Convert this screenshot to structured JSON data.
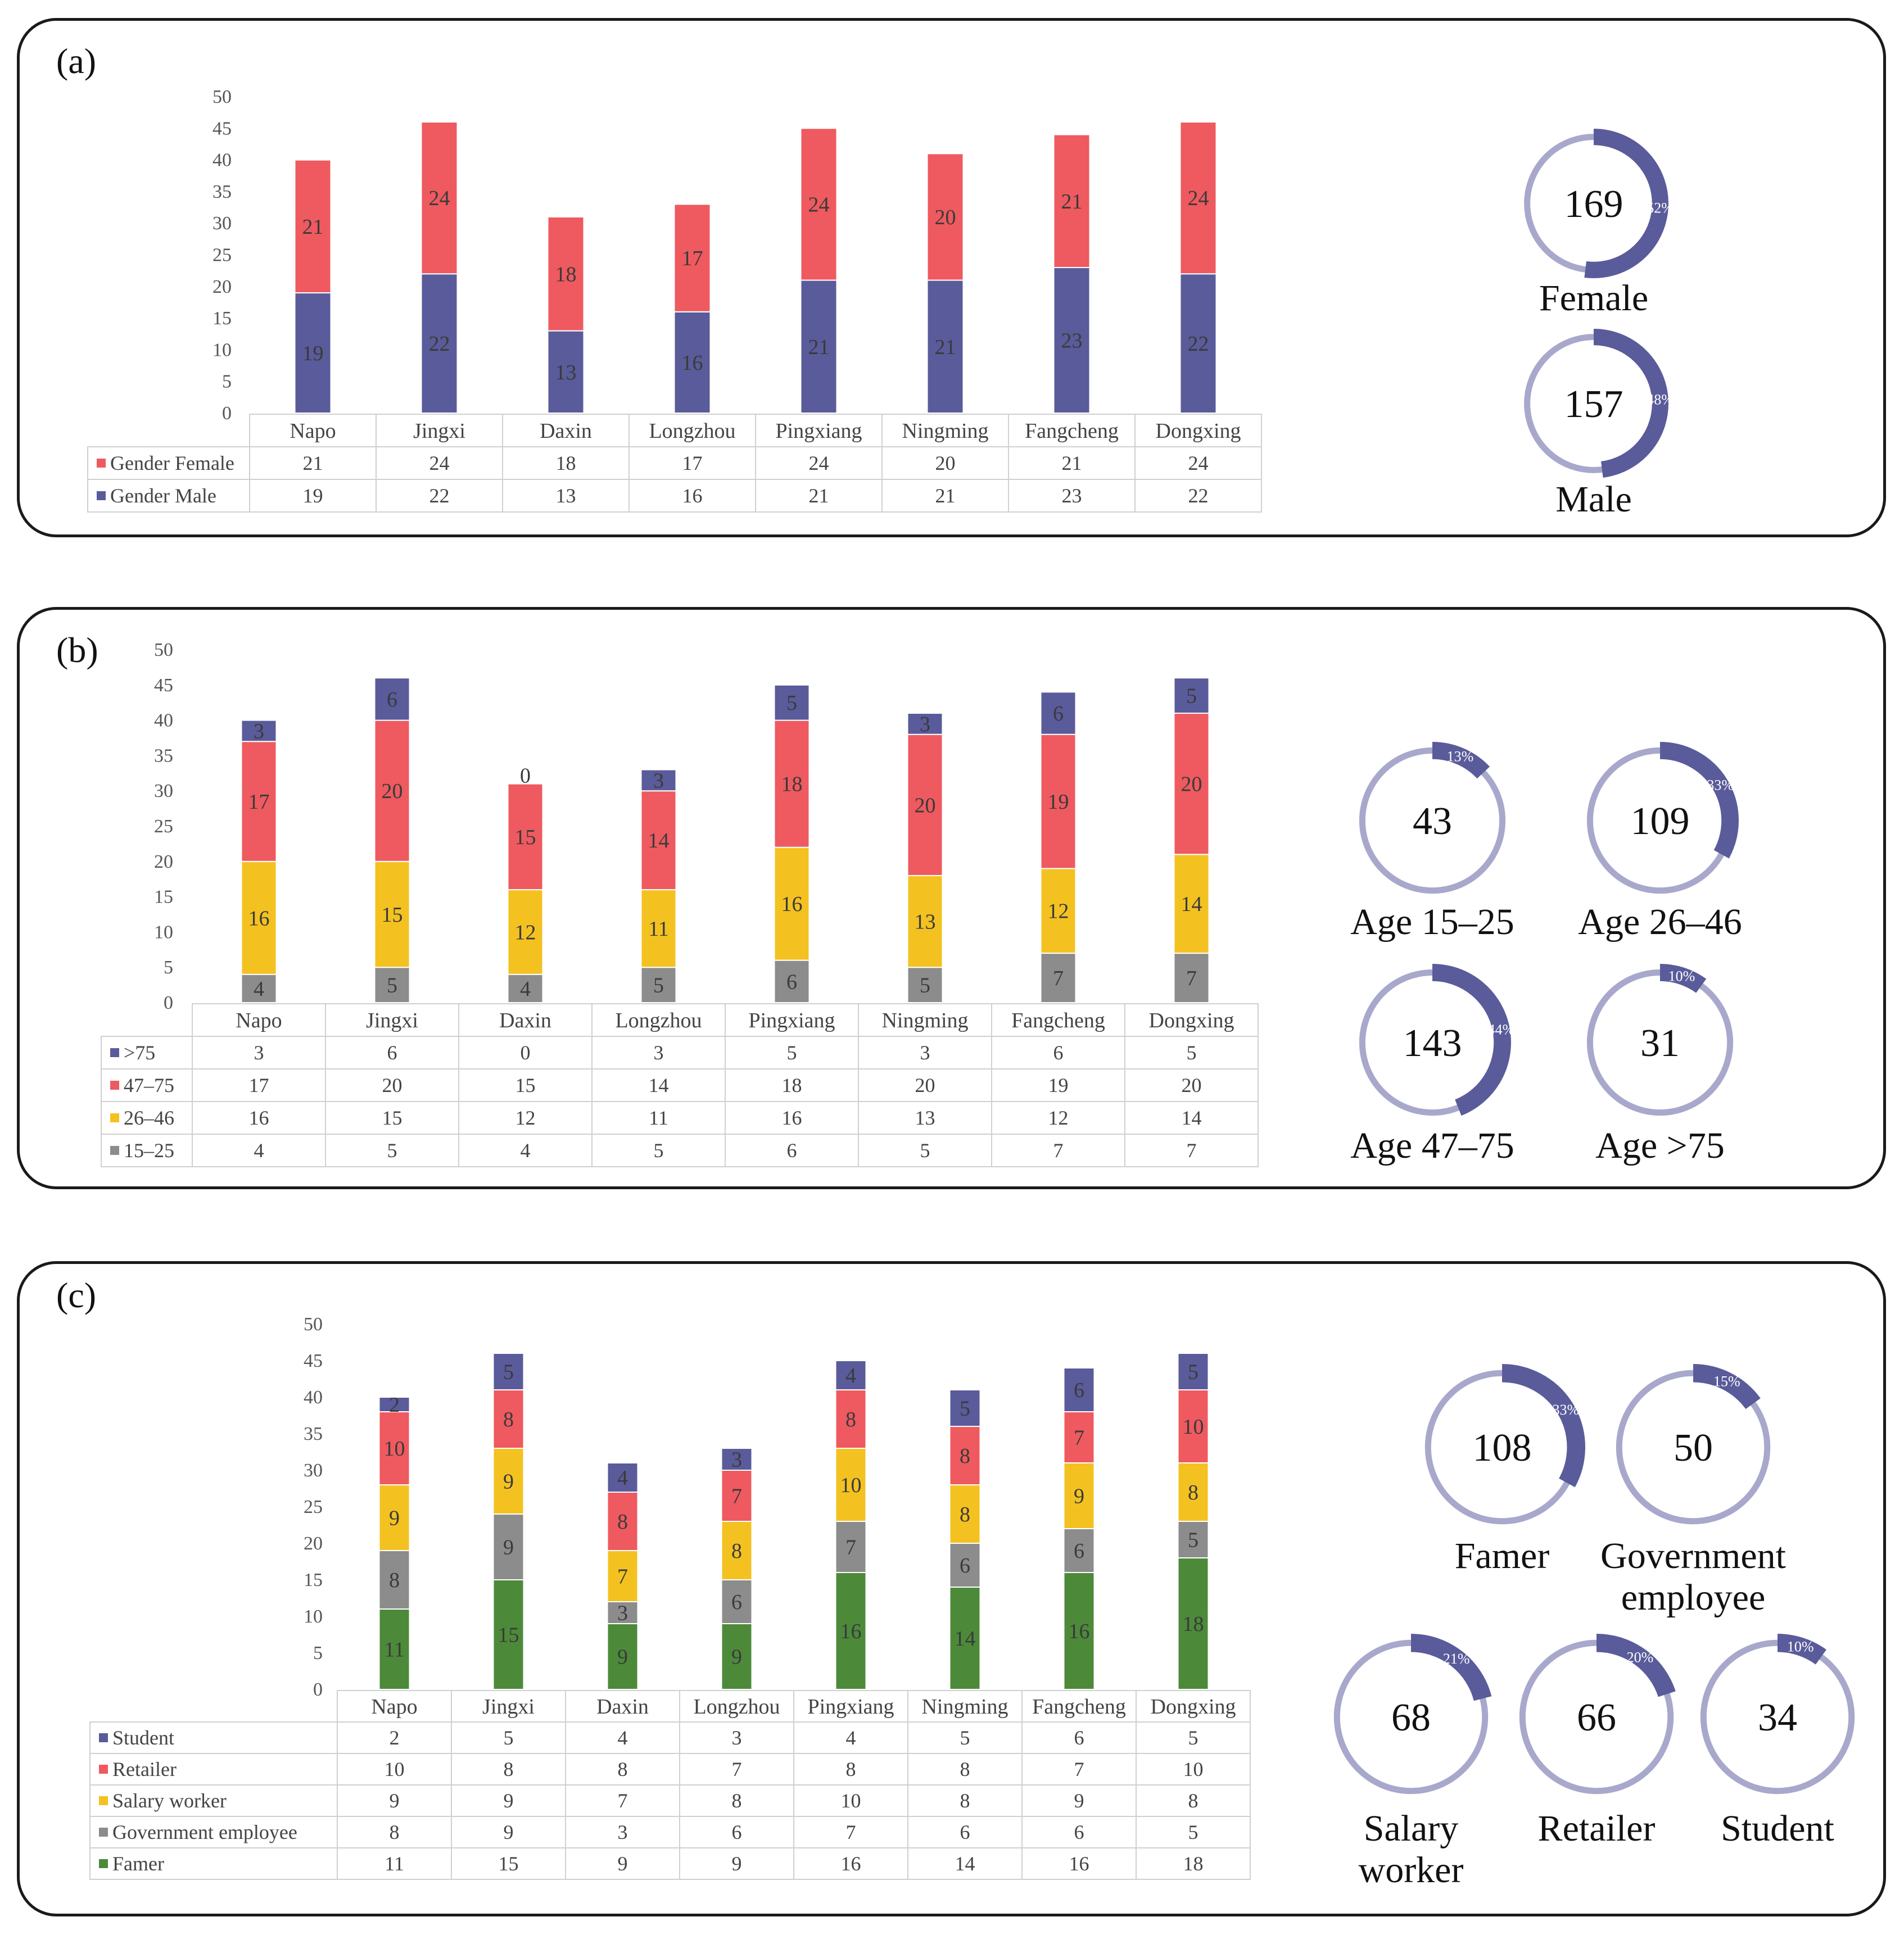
{
  "colors": {
    "purple": "#5a5b9a",
    "red": "#ee5a5f",
    "yellow": "#f3c221",
    "gray": "#8c8c8c",
    "green": "#4c8a3a",
    "ring": "#a8a8cc"
  },
  "panels": {
    "a": {
      "label": "(a)"
    },
    "b": {
      "label": "(b)"
    },
    "c": {
      "label": "(c)"
    }
  },
  "chart_data": [
    {
      "id": "a",
      "type": "bar",
      "stacked": true,
      "title": "",
      "categories": [
        "Napo",
        "Jingxi",
        "Daxin",
        "Longzhou",
        "Pingxiang",
        "Ningming",
        "Fangcheng",
        "Dongxing"
      ],
      "yticks": [
        "0",
        "5",
        "10",
        "15",
        "20",
        "25",
        "30",
        "35",
        "40",
        "45",
        "50"
      ],
      "ylim": [
        0,
        50
      ],
      "series": [
        {
          "name": "Gender Male",
          "color": "#5a5b9a",
          "values": [
            19,
            22,
            13,
            16,
            21,
            21,
            23,
            22
          ]
        },
        {
          "name": "Gender Female",
          "color": "#ee5a5f",
          "values": [
            21,
            24,
            18,
            17,
            24,
            20,
            21,
            24
          ]
        }
      ],
      "table_order": [
        1,
        0
      ],
      "donuts": [
        {
          "value": "169",
          "pct": "52%",
          "fraction": 0.52,
          "label": [
            "Female"
          ]
        },
        {
          "value": "157",
          "pct": "48%",
          "fraction": 0.48,
          "label": [
            "Male"
          ]
        }
      ]
    },
    {
      "id": "b",
      "type": "bar",
      "stacked": true,
      "title": "",
      "categories": [
        "Napo",
        "Jingxi",
        "Daxin",
        "Longzhou",
        "Pingxiang",
        "Ningming",
        "Fangcheng",
        "Dongxing"
      ],
      "yticks": [
        "0",
        "5",
        "10",
        "15",
        "20",
        "25",
        "30",
        "35",
        "40",
        "45",
        "50"
      ],
      "ylim": [
        0,
        50
      ],
      "series": [
        {
          "name": "15–25",
          "color": "#8c8c8c",
          "values": [
            4,
            5,
            4,
            5,
            6,
            5,
            7,
            7
          ]
        },
        {
          "name": "26–46",
          "color": "#f3c221",
          "values": [
            16,
            15,
            12,
            11,
            16,
            13,
            12,
            14
          ]
        },
        {
          "name": "47–75",
          "color": "#ee5a5f",
          "values": [
            17,
            20,
            15,
            14,
            18,
            20,
            19,
            20
          ]
        },
        {
          "name": ">75",
          "color": "#5a5b9a",
          "values": [
            3,
            6,
            0,
            3,
            5,
            3,
            6,
            5
          ]
        }
      ],
      "table_order": [
        3,
        2,
        1,
        0
      ],
      "donuts": [
        {
          "value": "43",
          "pct": "13%",
          "fraction": 0.13,
          "label": [
            "Age 15–25"
          ]
        },
        {
          "value": "109",
          "pct": "33%",
          "fraction": 0.33,
          "label": [
            "Age 26–46"
          ]
        },
        {
          "value": "143",
          "pct": "44%",
          "fraction": 0.44,
          "label": [
            "Age 47–75"
          ]
        },
        {
          "value": "31",
          "pct": "10%",
          "fraction": 0.1,
          "label": [
            "Age >75"
          ]
        }
      ]
    },
    {
      "id": "c",
      "type": "bar",
      "stacked": true,
      "title": "",
      "categories": [
        "Napo",
        "Jingxi",
        "Daxin",
        "Longzhou",
        "Pingxiang",
        "Ningming",
        "Fangcheng",
        "Dongxing"
      ],
      "yticks": [
        "0",
        "5",
        "10",
        "15",
        "20",
        "25",
        "30",
        "35",
        "40",
        "45",
        "50"
      ],
      "ylim": [
        0,
        50
      ],
      "series": [
        {
          "name": "Famer",
          "color": "#4c8a3a",
          "values": [
            11,
            15,
            9,
            9,
            16,
            14,
            16,
            18
          ]
        },
        {
          "name": "Government employee",
          "color": "#8c8c8c",
          "values": [
            8,
            9,
            3,
            6,
            7,
            6,
            6,
            5
          ]
        },
        {
          "name": "Salary worker",
          "color": "#f3c221",
          "values": [
            9,
            9,
            7,
            8,
            10,
            8,
            9,
            8
          ]
        },
        {
          "name": "Retailer",
          "color": "#ee5a5f",
          "values": [
            10,
            8,
            8,
            7,
            8,
            8,
            7,
            10
          ]
        },
        {
          "name": "Student",
          "color": "#5a5b9a",
          "values": [
            2,
            5,
            4,
            3,
            4,
            5,
            6,
            5
          ]
        }
      ],
      "table_order": [
        4,
        3,
        2,
        1,
        0
      ],
      "donuts": [
        {
          "value": "108",
          "pct": "33%",
          "fraction": 0.33,
          "label": [
            "Famer"
          ]
        },
        {
          "value": "50",
          "pct": "15%",
          "fraction": 0.15,
          "label": [
            "Government",
            "employee"
          ]
        },
        {
          "value": "68",
          "pct": "21%",
          "fraction": 0.21,
          "label": [
            "Salary",
            "worker"
          ]
        },
        {
          "value": "66",
          "pct": "20%",
          "fraction": 0.2,
          "label": [
            "Retailer"
          ]
        },
        {
          "value": "34",
          "pct": "10%",
          "fraction": 0.1,
          "label": [
            "Student"
          ]
        }
      ]
    }
  ]
}
